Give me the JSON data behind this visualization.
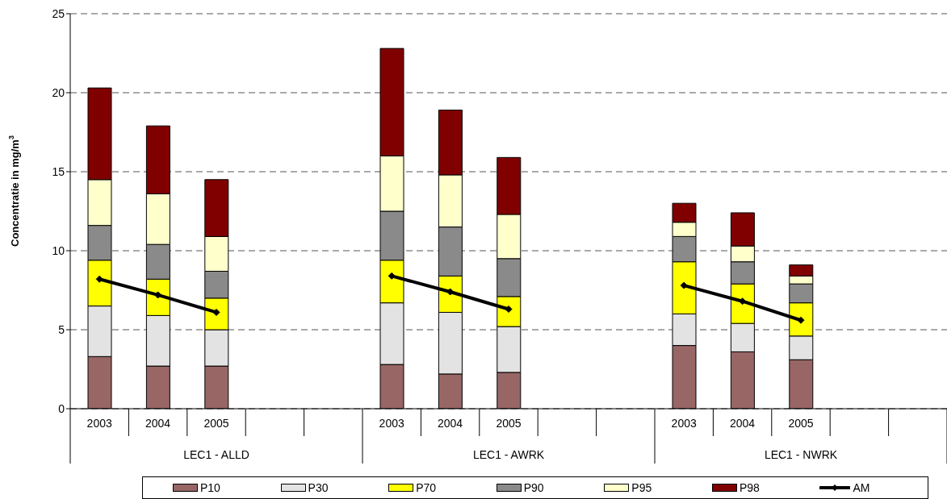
{
  "chart_data": {
    "type": "bar",
    "stacked": true,
    "ylabel": "Concentratie in mg/m$^{3}$",
    "categories": [
      "2003",
      "2004",
      "2005",
      null,
      null,
      "2003",
      "2004",
      "2005",
      null,
      null,
      "2003",
      "2004",
      "2005",
      null,
      null
    ],
    "annotations": [
      "LEC1 - ALLD",
      "LEC1 - AWRK",
      "LEC1 - NWRK"
    ],
    "series": [
      {
        "name": "P10",
        "color": "#996666",
        "values": [
          3.3,
          2.7,
          2.7,
          null,
          null,
          2.8,
          2.2,
          2.3,
          null,
          null,
          4.0,
          3.6,
          3.1,
          null,
          null
        ]
      },
      {
        "name": "P30",
        "color": "#e3e3e3",
        "values": [
          3.2,
          3.2,
          2.3,
          null,
          null,
          3.9,
          3.9,
          2.9,
          null,
          null,
          2.0,
          1.8,
          1.5,
          null,
          null
        ]
      },
      {
        "name": "P70",
        "color": "#ffff00",
        "values": [
          2.9,
          2.3,
          2.0,
          null,
          null,
          2.7,
          2.3,
          1.9,
          null,
          null,
          3.3,
          2.5,
          2.1,
          null,
          null
        ]
      },
      {
        "name": "P90",
        "color": "#8a8a8a",
        "values": [
          2.2,
          2.2,
          1.7,
          null,
          null,
          3.1,
          3.1,
          2.4,
          null,
          null,
          1.6,
          1.4,
          1.2,
          null,
          null
        ]
      },
      {
        "name": "P95",
        "color": "#ffffcc",
        "values": [
          2.9,
          3.2,
          2.2,
          null,
          null,
          3.5,
          3.3,
          2.8,
          null,
          null,
          0.9,
          1.0,
          0.5,
          null,
          null
        ]
      },
      {
        "name": "P98",
        "color": "#800000",
        "values": [
          5.8,
          4.3,
          3.6,
          null,
          null,
          6.8,
          4.1,
          3.6,
          null,
          null,
          1.2,
          2.1,
          0.7,
          null,
          null
        ]
      },
      {
        "name": "AM",
        "type": "line",
        "color": "#000000",
        "values": [
          8.2,
          7.2,
          6.1,
          null,
          null,
          8.4,
          7.4,
          6.3,
          null,
          null,
          7.8,
          6.8,
          5.6,
          null,
          null
        ]
      }
    ],
    "ylim": [
      0,
      25
    ],
    "yticks": [
      0,
      5,
      10,
      15,
      20,
      25
    ],
    "grid": "y",
    "legend": "bottom",
    "marker": "diamond"
  }
}
